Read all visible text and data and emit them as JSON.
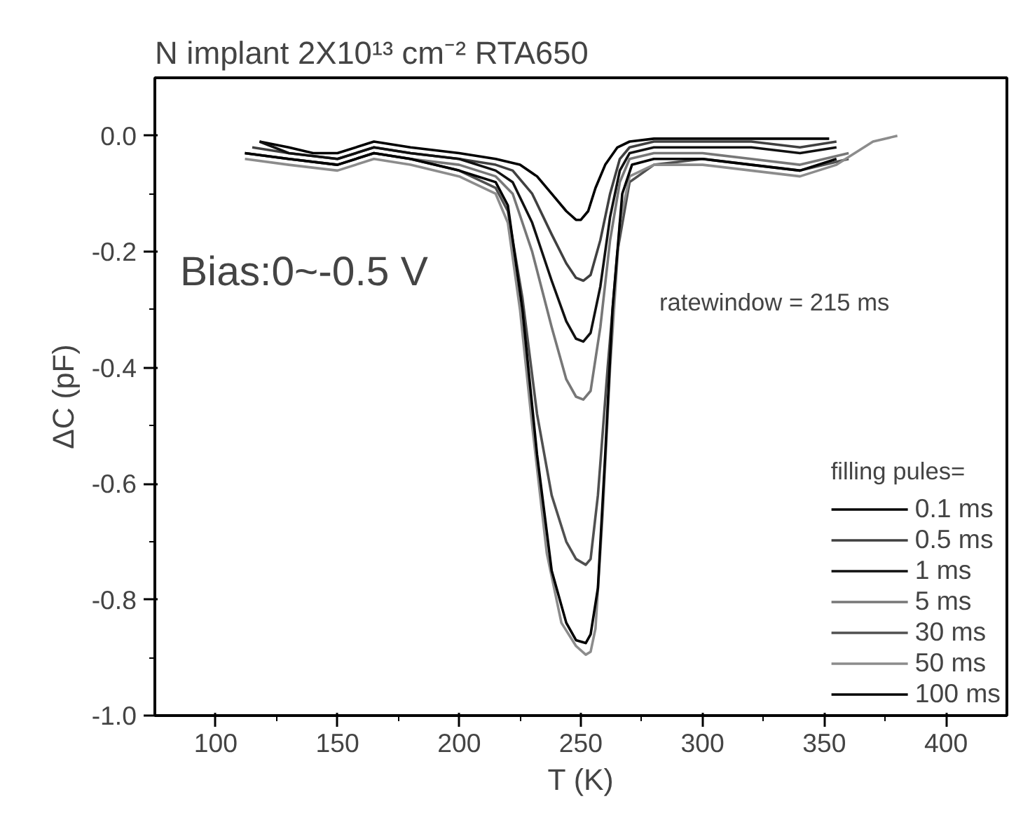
{
  "chart_data": {
    "type": "line",
    "title": "N implant 2X10¹³ cm⁻² RTA650",
    "xlabel": "T (K)",
    "ylabel": "ΔC (pF)",
    "legend_title": "filling pules=",
    "annotations": [
      "Bias:0~-0.5 V",
      "ratewindow = 215 ms"
    ],
    "xlim": [
      75,
      425
    ],
    "ylim": [
      -1.0,
      0.1
    ],
    "xticks": [
      100,
      150,
      200,
      250,
      300,
      350,
      400
    ],
    "yticks": [
      {
        "value": -1.0,
        "label": "-1.0"
      },
      {
        "value": -0.8,
        "label": "-0.8"
      },
      {
        "value": -0.6,
        "label": "-0.6"
      },
      {
        "value": -0.4,
        "label": "-0.4"
      },
      {
        "value": -0.2,
        "label": "-0.2"
      },
      {
        "value": 0.0,
        "label": "0.0"
      }
    ],
    "grid": false,
    "legend": "bottom right",
    "marker": "none",
    "line_style": "solid",
    "series": [
      {
        "name": "0.1 ms",
        "color": "#000000",
        "x": [
          118,
          130,
          140,
          150,
          165,
          180,
          200,
          215,
          225,
          232,
          238,
          244,
          248,
          250,
          253,
          256,
          260,
          265,
          270,
          280,
          300,
          320,
          340,
          352
        ],
        "values": [
          -0.01,
          -0.02,
          -0.03,
          -0.03,
          -0.01,
          -0.02,
          -0.03,
          -0.04,
          -0.05,
          -0.07,
          -0.1,
          -0.13,
          -0.145,
          -0.145,
          -0.13,
          -0.09,
          -0.05,
          -0.02,
          -0.01,
          -0.005,
          -0.005,
          -0.005,
          -0.005,
          -0.005
        ]
      },
      {
        "name": "0.5 ms",
        "color": "#404040",
        "x": [
          115,
          130,
          150,
          165,
          180,
          200,
          215,
          222,
          230,
          238,
          244,
          248,
          251,
          254,
          258,
          262,
          266,
          270,
          280,
          300,
          320,
          340,
          355
        ],
        "values": [
          -0.02,
          -0.03,
          -0.04,
          -0.02,
          -0.03,
          -0.04,
          -0.05,
          -0.06,
          -0.1,
          -0.17,
          -0.22,
          -0.245,
          -0.25,
          -0.24,
          -0.18,
          -0.1,
          -0.04,
          -0.02,
          -0.01,
          -0.01,
          -0.01,
          -0.02,
          -0.01
        ]
      },
      {
        "name": "1 ms",
        "color": "#111111",
        "x": [
          118,
          130,
          150,
          165,
          180,
          200,
          215,
          222,
          230,
          238,
          244,
          248,
          251,
          254,
          258,
          262,
          266,
          270,
          280,
          300,
          320,
          340,
          355
        ],
        "values": [
          -0.01,
          -0.03,
          -0.04,
          -0.02,
          -0.03,
          -0.04,
          -0.06,
          -0.08,
          -0.15,
          -0.25,
          -0.32,
          -0.35,
          -0.355,
          -0.34,
          -0.26,
          -0.14,
          -0.06,
          -0.03,
          -0.02,
          -0.02,
          -0.02,
          -0.03,
          -0.02
        ]
      },
      {
        "name": "5 ms",
        "color": "#777777",
        "x": [
          112,
          130,
          150,
          165,
          180,
          200,
          215,
          222,
          230,
          238,
          244,
          248,
          251,
          254,
          258,
          262,
          266,
          270,
          280,
          300,
          320,
          340,
          360
        ],
        "values": [
          -0.03,
          -0.04,
          -0.05,
          -0.03,
          -0.04,
          -0.05,
          -0.07,
          -0.1,
          -0.2,
          -0.33,
          -0.42,
          -0.45,
          -0.455,
          -0.44,
          -0.33,
          -0.18,
          -0.08,
          -0.04,
          -0.03,
          -0.03,
          -0.04,
          -0.05,
          -0.03
        ]
      },
      {
        "name": "30 ms",
        "color": "#505050",
        "x": [
          112,
          130,
          150,
          165,
          180,
          200,
          215,
          220,
          226,
          232,
          238,
          244,
          248,
          252,
          254,
          257,
          261,
          265,
          270,
          280,
          300,
          320,
          340,
          360
        ],
        "values": [
          -0.03,
          -0.04,
          -0.05,
          -0.03,
          -0.04,
          -0.06,
          -0.09,
          -0.13,
          -0.28,
          -0.48,
          -0.62,
          -0.7,
          -0.73,
          -0.74,
          -0.73,
          -0.62,
          -0.4,
          -0.2,
          -0.08,
          -0.05,
          -0.04,
          -0.05,
          -0.06,
          -0.04
        ]
      },
      {
        "name": "50 ms",
        "color": "#8c8c8c",
        "x": [
          112,
          130,
          150,
          165,
          180,
          200,
          215,
          220,
          225,
          230,
          236,
          242,
          248,
          252,
          254,
          256,
          259,
          262,
          266,
          270,
          280,
          300,
          320,
          340,
          355,
          370,
          380
        ],
        "values": [
          -0.04,
          -0.05,
          -0.06,
          -0.04,
          -0.05,
          -0.07,
          -0.1,
          -0.15,
          -0.3,
          -0.5,
          -0.72,
          -0.84,
          -0.88,
          -0.895,
          -0.89,
          -0.85,
          -0.65,
          -0.4,
          -0.15,
          -0.07,
          -0.05,
          -0.05,
          -0.06,
          -0.07,
          -0.05,
          -0.01,
          0.0
        ]
      },
      {
        "name": "100 ms",
        "color": "#000000",
        "x": [
          112,
          130,
          150,
          165,
          180,
          200,
          215,
          220,
          226,
          232,
          238,
          244,
          248,
          252,
          254,
          257,
          260,
          263,
          267,
          271,
          280,
          300,
          320,
          340,
          355
        ],
        "values": [
          -0.03,
          -0.04,
          -0.05,
          -0.03,
          -0.04,
          -0.06,
          -0.08,
          -0.12,
          -0.3,
          -0.55,
          -0.75,
          -0.84,
          -0.87,
          -0.875,
          -0.86,
          -0.78,
          -0.55,
          -0.3,
          -0.1,
          -0.05,
          -0.04,
          -0.04,
          -0.05,
          -0.06,
          -0.04
        ]
      }
    ]
  }
}
